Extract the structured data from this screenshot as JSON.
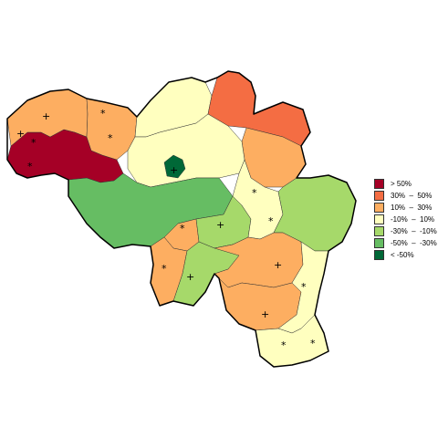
{
  "legend": {
    "items": [
      {
        "label": "> 50%",
        "color": "#a50026"
      },
      {
        "label": "30%  –  50%",
        "color": "#f46d43"
      },
      {
        "label": "10%  –  30%",
        "color": "#fdae61"
      },
      {
        "label": "-10%  –  10%",
        "color": "#ffffbf"
      },
      {
        "label": "-30%  –  -10%",
        "color": "#a6d96a"
      },
      {
        "label": "-50%  –  -30%",
        "color": "#66bd63"
      },
      {
        "label": "< -50%",
        "color": "#006837"
      }
    ]
  },
  "symbols": {
    "plus": "+",
    "star": "*"
  }
}
